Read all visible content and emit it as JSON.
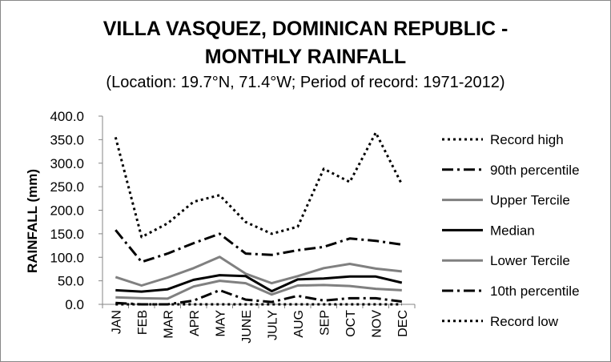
{
  "chart_data": {
    "type": "line",
    "title_line1": "VILLA VASQUEZ, DOMINICAN REPUBLIC -",
    "title_line2": "MONTHLY RAINFALL",
    "subtitle": "(Location: 19.7°N, 71.4°W; Period of record: 1971-2012)",
    "xlabel": "",
    "ylabel": "RAINFALL (mm)",
    "ylim": [
      0,
      400
    ],
    "yticks": [
      "0.0",
      "50.0",
      "100.0",
      "150.0",
      "200.0",
      "250.0",
      "300.0",
      "350.0",
      "400.0"
    ],
    "categories": [
      "JAN",
      "FEB",
      "MAR",
      "APR",
      "MAY",
      "JUNE",
      "JULY",
      "AUG",
      "SEP",
      "OCT",
      "NOV",
      "DEC"
    ],
    "grid": false,
    "legend_position": "right",
    "series": [
      {
        "name": "Record high",
        "style": "dotted",
        "color": "#000000",
        "width": 3,
        "values": [
          355,
          143,
          172,
          218,
          232,
          175,
          150,
          165,
          288,
          260,
          365,
          255
        ]
      },
      {
        "name": "90th percentile",
        "style": "dashdot",
        "color": "#000000",
        "width": 3,
        "values": [
          158,
          90,
          108,
          130,
          150,
          108,
          105,
          115,
          122,
          140,
          135,
          127
        ]
      },
      {
        "name": "Upper Tercile",
        "style": "solid",
        "color": "#808080",
        "width": 3,
        "values": [
          58,
          40,
          57,
          77,
          101,
          65,
          45,
          60,
          77,
          86,
          76,
          70
        ]
      },
      {
        "name": "Median",
        "style": "solid",
        "color": "#000000",
        "width": 3,
        "values": [
          30,
          27,
          32,
          52,
          62,
          60,
          28,
          53,
          55,
          59,
          59,
          46
        ]
      },
      {
        "name": "Lower Tercile",
        "style": "solid",
        "color": "#808080",
        "width": 3,
        "values": [
          15,
          13,
          12,
          38,
          50,
          45,
          21,
          40,
          41,
          39,
          33,
          30
        ]
      },
      {
        "name": "10th percentile",
        "style": "dashdot",
        "color": "#000000",
        "width": 3,
        "values": [
          3,
          0,
          0,
          8,
          30,
          10,
          5,
          18,
          8,
          13,
          13,
          6
        ]
      },
      {
        "name": "Record low",
        "style": "dotted",
        "color": "#000000",
        "width": 3,
        "values": [
          0,
          0,
          0,
          0,
          0,
          0,
          0,
          0,
          0,
          0,
          0,
          0
        ]
      }
    ]
  }
}
